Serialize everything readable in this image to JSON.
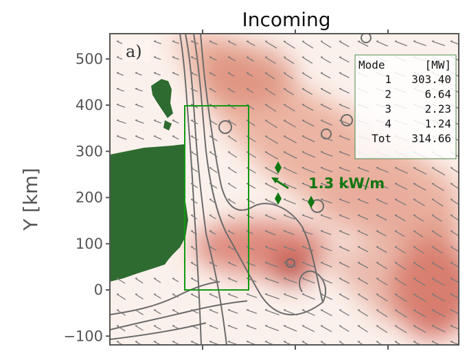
{
  "chart_data": {
    "type": "heatmap",
    "title": "Incoming",
    "ylabel": "Y [km]",
    "xlabel": "",
    "panel_label": "a)",
    "ylim": [
      -120,
      555
    ],
    "y_ticks": [
      -100,
      0,
      100,
      200,
      300,
      400,
      500
    ],
    "y_tick_labels": [
      "−100",
      "0",
      "100",
      "200",
      "300",
      "400",
      "500"
    ],
    "x_ticks_unlabeled": 4,
    "flux_label": "1.3 kW/m",
    "table": {
      "header": [
        "Mode",
        "[MW]"
      ],
      "rows": [
        [
          "1",
          "303.40"
        ],
        [
          "2",
          "6.64"
        ],
        [
          "3",
          "2.23"
        ],
        [
          "4",
          "1.24"
        ],
        [
          "Tot",
          "314.66"
        ]
      ]
    },
    "colors": {
      "land": "#2e6b30",
      "box": "#119911",
      "flux": "#117711",
      "contour": "#6a6a6a",
      "heat_high": "#c0392b"
    },
    "grid": false
  }
}
